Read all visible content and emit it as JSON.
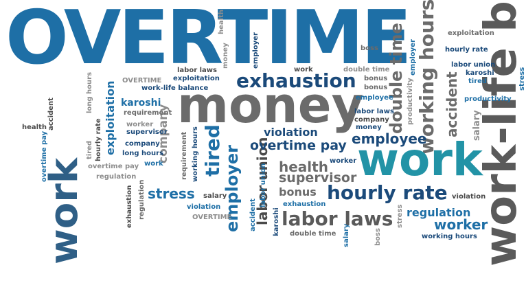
{
  "colors": {
    "dark_blue": "#1b4a7a",
    "blue": "#1e6fa6",
    "teal": "#2293a6",
    "gray": "#6b6b6b",
    "dark_gray": "#4a4a4a",
    "light_gray": "#8d8d8d"
  },
  "words": [
    "OVERTIME",
    "money",
    "work",
    "long hours",
    "work-life balance",
    "exhaustion",
    "hourly rate",
    "labor laws",
    "working hours",
    "employer",
    "double time",
    "overtime pay",
    "employee",
    "tired",
    "labor union",
    "accident",
    "exploitation",
    "health",
    "supervisor",
    "stress",
    "violation",
    "bonus",
    "worker",
    "regulation",
    "karoshi",
    "company",
    "salary",
    "requirement",
    "productivity",
    "boss"
  ]
}
